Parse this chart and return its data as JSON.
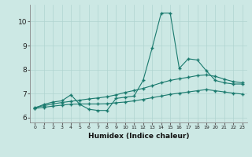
{
  "title": "",
  "xlabel": "Humidex (Indice chaleur)",
  "ylabel": "",
  "bg_color": "#cce8e4",
  "grid_color": "#b0d4d0",
  "line_color": "#1a7a6e",
  "xlim": [
    -0.5,
    23.5
  ],
  "ylim": [
    5.8,
    10.7
  ],
  "yticks": [
    6,
    7,
    8,
    9,
    10
  ],
  "xticks": [
    0,
    1,
    2,
    3,
    4,
    5,
    6,
    7,
    8,
    9,
    10,
    11,
    12,
    13,
    14,
    15,
    16,
    17,
    18,
    19,
    20,
    21,
    22,
    23
  ],
  "series_main": [
    6.4,
    6.55,
    6.65,
    6.7,
    6.95,
    6.55,
    6.35,
    6.3,
    6.3,
    6.8,
    6.85,
    6.9,
    7.55,
    8.9,
    10.35,
    10.35,
    8.05,
    8.45,
    8.4,
    7.95,
    7.55,
    7.45,
    7.4,
    7.4
  ],
  "series_upper": [
    6.42,
    6.5,
    6.57,
    6.63,
    6.68,
    6.73,
    6.78,
    6.82,
    6.87,
    6.95,
    7.05,
    7.13,
    7.22,
    7.33,
    7.45,
    7.55,
    7.62,
    7.68,
    7.75,
    7.78,
    7.72,
    7.6,
    7.5,
    7.45
  ],
  "series_lower": [
    6.38,
    6.43,
    6.48,
    6.52,
    6.56,
    6.57,
    6.57,
    6.57,
    6.58,
    6.62,
    6.65,
    6.7,
    6.76,
    6.83,
    6.9,
    6.97,
    7.02,
    7.07,
    7.12,
    7.17,
    7.12,
    7.07,
    7.02,
    6.98
  ]
}
